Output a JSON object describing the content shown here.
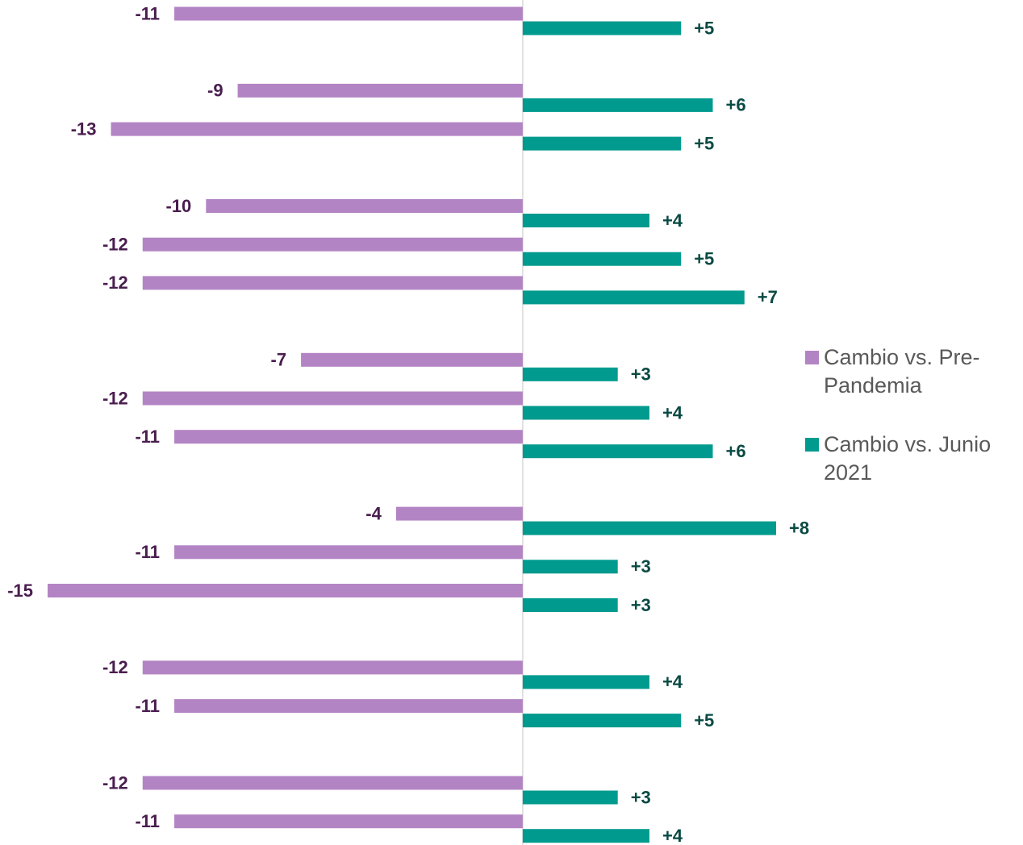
{
  "chart_data": {
    "type": "barh",
    "categories": [
      null,
      null,
      null,
      null,
      null,
      null,
      null,
      null,
      null,
      null,
      null,
      null,
      null,
      null,
      null,
      null,
      null,
      null,
      null,
      null,
      null,
      null
    ],
    "series": [
      {
        "name": "Cambio vs. Pre-Pandemia",
        "color": "#b384c4",
        "label_color": "#4a1d4f",
        "values": [
          -11,
          null,
          -9,
          -13,
          null,
          -10,
          -12,
          -12,
          null,
          -7,
          -12,
          -11,
          null,
          -4,
          -11,
          -15,
          null,
          -12,
          -11,
          null,
          -12,
          -11
        ]
      },
      {
        "name": "Cambio vs. Junio 2021",
        "color": "#009a8e",
        "label_color": "#0a4a43",
        "values": [
          5,
          null,
          6,
          5,
          null,
          4,
          5,
          7,
          null,
          3,
          4,
          6,
          null,
          8,
          3,
          3,
          null,
          4,
          5,
          null,
          3,
          4
        ],
        "value_labels": [
          "+5",
          null,
          "+6",
          "+5",
          null,
          "+4",
          "+5",
          "+7",
          null,
          "+3",
          "+4",
          "+6",
          null,
          "+8",
          "+3",
          "+3",
          null,
          "+4",
          "+5",
          null,
          "+3",
          "+4"
        ]
      }
    ],
    "xlim": [
      -15,
      8
    ],
    "legend": "right"
  }
}
